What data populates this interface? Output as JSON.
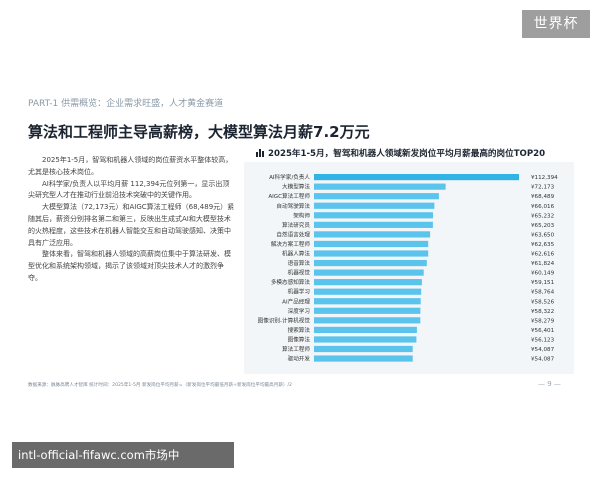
{
  "watermark": "世界杯",
  "part_label": "PART-1  供需概览：企业需求旺盛，人才黄金赛道",
  "headline": "算法和工程师主导高薪榜，大模型算法月薪7.2万元",
  "paragraphs": [
    "2025年1-5月，智驾和机器人领域的岗位薪资水平整体较高，尤其是核心技术岗位。",
    "AI科学家/负责人以平均月薪 112,394元位列第一，显示出顶尖研究型人才在推动行业前沿技术突破中的关键作用。",
    "大模型算法（72,173元）和AIGC算法工程师（68,489元）紧随其后，薪资分别排名第二和第三，反映出生成式AI和大模型技术的火热程度，这些技术在机器人智能交互和自动驾驶感知、决策中具有广泛应用。",
    "整体来看，智驾和机器人领域的高薪岗位集中于算法研发、模型优化和系统架构领域，揭示了该领域对顶尖技术人才的激烈争夺。"
  ],
  "chart_data": {
    "type": "bar",
    "orientation": "horizontal",
    "title": "2025年1-5月，智驾和机器人领域新发岗位平均月薪最高的岗位TOP20",
    "categories": [
      "AI科学家/负责人",
      "大模型算法",
      "AIGC算法工程师",
      "自动驾驶算法",
      "架构师",
      "算法研究员",
      "自然语言处理",
      "解决方案工程师",
      "机器人算法",
      "语音算法",
      "机器视觉",
      "多模态感知算法",
      "机器学习",
      "AI产品经理",
      "深度学习",
      "图像识别-计算机视觉",
      "搜索算法",
      "图像算法",
      "算法工程师",
      "驱动开发"
    ],
    "values": [
      112394,
      72173,
      68489,
      66016,
      65232,
      65203,
      63650,
      62635,
      62616,
      61824,
      60149,
      59151,
      58764,
      58526,
      58322,
      58279,
      56401,
      56123,
      54087,
      54087
    ],
    "value_labels": [
      "¥112,394",
      "¥72,173",
      "¥68,489",
      "¥66,016",
      "¥65,232",
      "¥65,203",
      "¥63,650",
      "¥62,635",
      "¥62,616",
      "¥61,824",
      "¥60,149",
      "¥59,151",
      "¥58,764",
      "¥58,526",
      "¥58,322",
      "¥58,279",
      "¥56,401",
      "¥56,123",
      "¥54,087",
      "¥54,087"
    ],
    "xlim": [
      0,
      112394
    ],
    "grid": false,
    "legend": "none",
    "colors": {
      "bar_top": "#32b3e5",
      "bar_rest": "#5bc4ec",
      "panel_bg": "#f2f6f8",
      "label": "#333333"
    }
  },
  "footer_source": "数据来源：脉脉高聘人才智库    统计时间：2025年1-5月    新发岗位平均月薪=（新发岗位平均最低月薪+新发岗位平均最高月薪）/2",
  "page_number": "— 9 —",
  "url_bar": "intl-official-fifawc.com市场中"
}
